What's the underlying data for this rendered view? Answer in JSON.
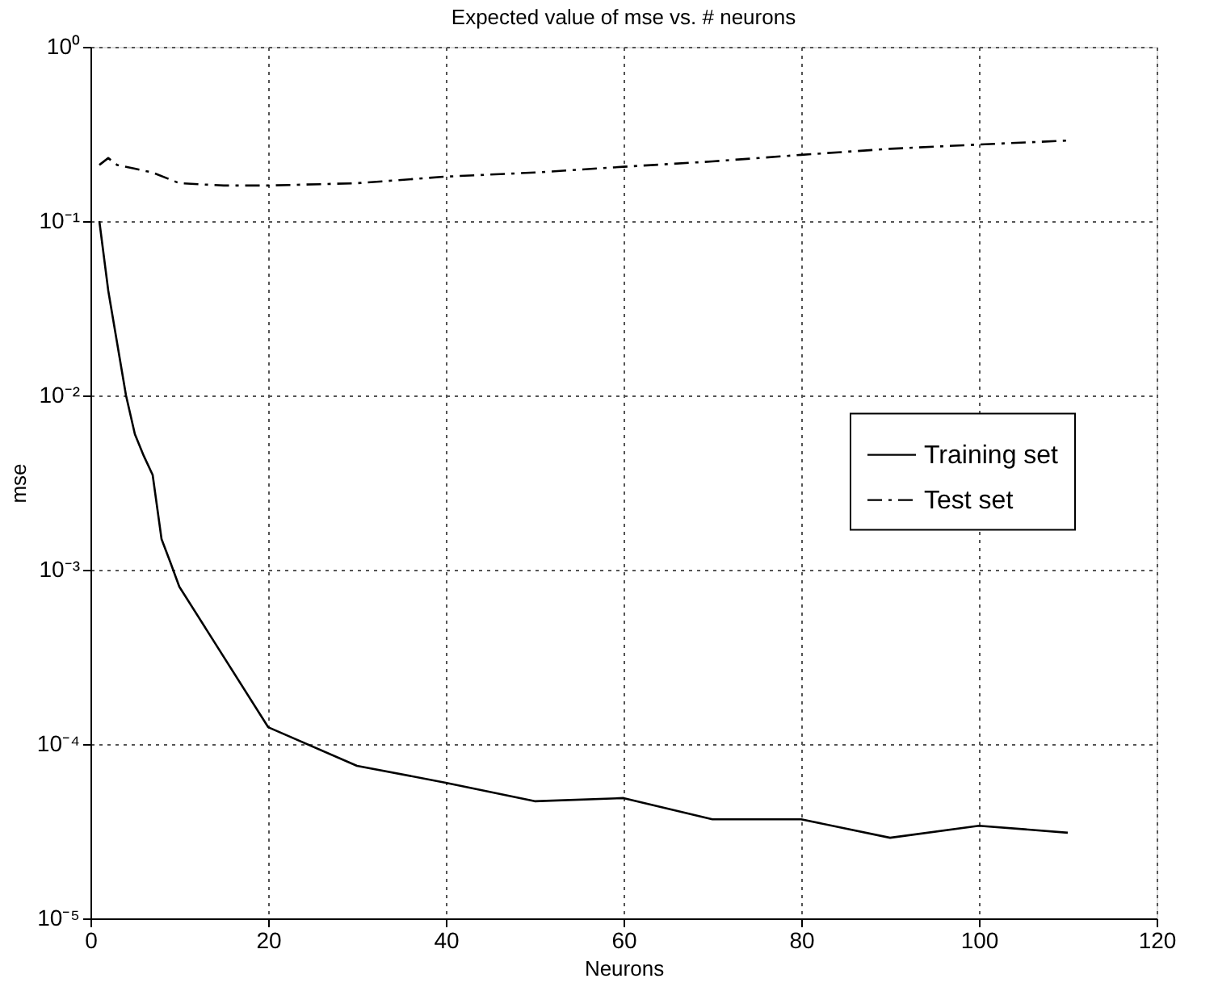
{
  "chart_data": {
    "type": "line",
    "title": "Expected value of mse vs. # neurons",
    "xlabel": "Neurons",
    "ylabel": "mse",
    "series": [
      {
        "name": "Training set",
        "color": "#000000",
        "line_style": "solid",
        "x": [
          1,
          2,
          3,
          4,
          5,
          6,
          7,
          8,
          9,
          10,
          20,
          30,
          40,
          50,
          60,
          70,
          80,
          90,
          100,
          110
        ],
        "values": [
          0.1,
          0.04,
          0.02,
          0.01,
          0.006,
          0.0045,
          0.0035,
          0.0015,
          0.0011,
          0.0008,
          0.000125,
          7.5e-05,
          6e-05,
          4.7e-05,
          4.9e-05,
          3.7e-05,
          3.7e-05,
          2.9e-05,
          3.4e-05,
          3.1e-05
        ]
      },
      {
        "name": "Test set",
        "color": "#000000",
        "line_style": "dashed",
        "x": [
          1,
          2,
          3,
          5,
          7,
          10,
          15,
          20,
          30,
          40,
          50,
          60,
          70,
          80,
          90,
          100,
          110
        ],
        "values": [
          0.21,
          0.23,
          0.21,
          0.2,
          0.19,
          0.165,
          0.16,
          0.16,
          0.165,
          0.18,
          0.19,
          0.205,
          0.22,
          0.24,
          0.26,
          0.275,
          0.29
        ]
      }
    ],
    "xlim": [
      0,
      120
    ],
    "xticks": [
      0,
      20,
      40,
      60,
      80,
      100,
      120
    ],
    "ylim": [
      1e-05,
      1
    ],
    "yticks": [
      {
        "value": 1e-05,
        "label": "10⁻⁵"
      },
      {
        "value": 0.0001,
        "label": "10⁻⁴"
      },
      {
        "value": 0.001,
        "label": "10⁻³"
      },
      {
        "value": 0.01,
        "label": "10⁻²"
      },
      {
        "value": 0.1,
        "label": "10⁻¹"
      },
      {
        "value": 1,
        "label": "10⁰"
      }
    ],
    "log": true,
    "grid": true,
    "legend": "right",
    "marker": "none"
  }
}
